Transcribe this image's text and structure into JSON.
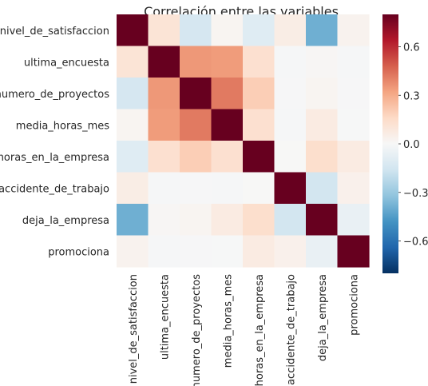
{
  "chart_data": {
    "type": "heatmap",
    "title": "Correlación entre las variables",
    "variables": [
      "nivel_de_satisfaccion",
      "ultima_encuesta",
      "numero_de_proyectos",
      "media_horas_mes",
      "horas_en_la_empresa",
      "accidente_de_trabajo",
      "deja_la_empresa",
      "promociona"
    ],
    "values": [
      [
        1.0,
        0.11,
        -0.14,
        0.02,
        -0.1,
        0.06,
        -0.39,
        0.03
      ],
      [
        0.11,
        1.0,
        0.35,
        0.34,
        0.13,
        -0.01,
        0.01,
        -0.01
      ],
      [
        -0.14,
        0.35,
        1.0,
        0.42,
        0.2,
        -0.005,
        0.02,
        -0.005
      ],
      [
        0.02,
        0.34,
        0.42,
        1.0,
        0.13,
        -0.01,
        0.07,
        -0.004
      ],
      [
        -0.1,
        0.13,
        0.2,
        0.13,
        1.0,
        0.002,
        0.14,
        0.07
      ],
      [
        0.06,
        -0.01,
        -0.005,
        -0.01,
        0.002,
        1.0,
        -0.15,
        0.04
      ],
      [
        -0.39,
        0.01,
        0.02,
        0.07,
        0.14,
        -0.15,
        1.0,
        -0.06
      ],
      [
        0.03,
        -0.01,
        -0.005,
        -0.004,
        0.07,
        0.04,
        -0.06,
        1.0
      ]
    ],
    "colorbar": {
      "range": [
        -0.8,
        0.8
      ],
      "ticks": [
        0.6,
        0.3,
        0.0,
        -0.3,
        -0.6
      ],
      "tick_labels": [
        "0.6",
        "0.3",
        "0.0",
        "−0.3",
        "−0.6"
      ]
    },
    "colormap": [
      "#053061",
      "#2166ac",
      "#4393c3",
      "#92c5de",
      "#d1e5f0",
      "#f7f7f7",
      "#fddbc7",
      "#f4a582",
      "#d6604d",
      "#b2182b",
      "#67001f"
    ]
  }
}
